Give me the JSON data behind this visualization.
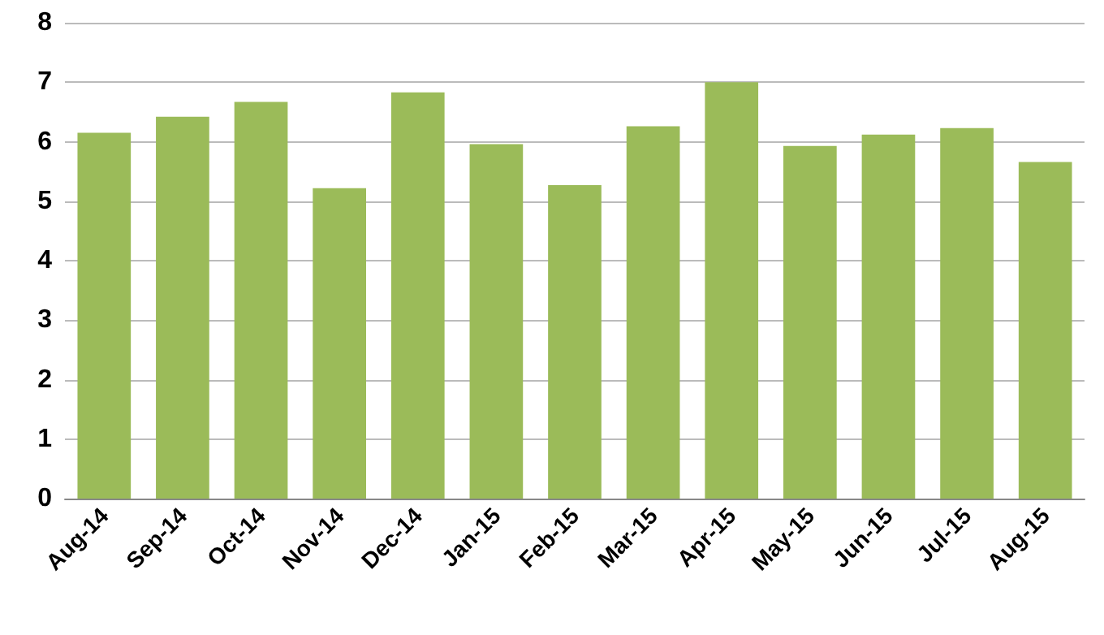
{
  "chart_data": {
    "type": "bar",
    "categories": [
      "Aug-14",
      "Sep-14",
      "Oct-14",
      "Nov-14",
      "Dec-14",
      "Jan-15",
      "Feb-15",
      "Mar-15",
      "Apr-15",
      "May-15",
      "Jun-15",
      "Jul-15",
      "Aug-15"
    ],
    "values": [
      6.15,
      6.42,
      6.67,
      5.22,
      6.83,
      5.96,
      5.27,
      6.26,
      7.0,
      5.93,
      6.12,
      6.23,
      5.66
    ],
    "color": "#9bbb59",
    "ylim": [
      0,
      8
    ],
    "yticks": [
      0,
      1,
      2,
      3,
      4,
      5,
      6,
      7,
      8
    ],
    "grid": "y"
  }
}
